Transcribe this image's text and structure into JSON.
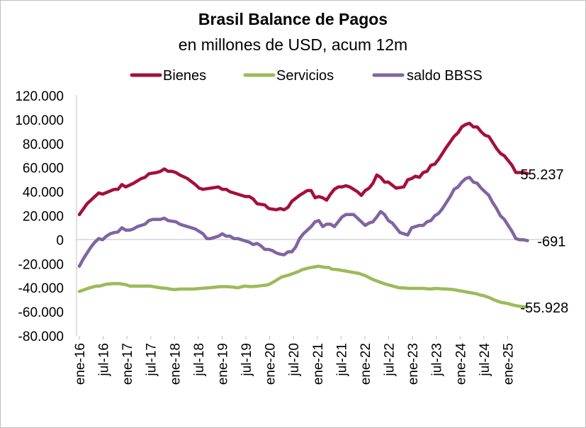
{
  "chart_data": {
    "type": "line",
    "title": "Brasil Balance de Pagos",
    "subtitle": "en millones de USD, acum 12m",
    "y_ticks": [
      "120.000",
      "100.000",
      "80.000",
      "60.000",
      "40.000",
      "20.000",
      "0",
      "-20.000",
      "-40.000",
      "-60.000",
      "-80.000"
    ],
    "ylim": [
      -80000,
      120000
    ],
    "x_tick_labels": [
      "ene-16",
      "jul-16",
      "ene-17",
      "jul-17",
      "ene-18",
      "jul-18",
      "ene-19",
      "jul-19",
      "ene-20",
      "jul-20",
      "ene-21",
      "jul-21",
      "ene-22",
      "jul-22",
      "ene-23",
      "jul-23",
      "ene-24",
      "jul-24",
      "ene-25"
    ],
    "x_start": "ene-16",
    "x_end": "jun-25",
    "grid": false,
    "legend_position": "top",
    "series": [
      {
        "name": "Bienes",
        "color": "#a50f3b",
        "end_label": "55.237",
        "keyframes": [
          [
            0,
            21000
          ],
          [
            2,
            30000
          ],
          [
            5,
            39000
          ],
          [
            6,
            38000
          ],
          [
            9,
            42000
          ],
          [
            10,
            42000
          ],
          [
            11,
            46000
          ],
          [
            12,
            44000
          ],
          [
            14,
            47000
          ],
          [
            16,
            51000
          ],
          [
            17,
            52000
          ],
          [
            18,
            55000
          ],
          [
            20,
            56000
          ],
          [
            21,
            57000
          ],
          [
            22,
            59000
          ],
          [
            23,
            57000
          ],
          [
            24,
            57000
          ],
          [
            25,
            56000
          ],
          [
            26,
            54000
          ],
          [
            28,
            51000
          ],
          [
            30,
            46000
          ],
          [
            31,
            43000
          ],
          [
            32,
            42000
          ],
          [
            34,
            43000
          ],
          [
            36,
            44000
          ],
          [
            37,
            42000
          ],
          [
            38,
            42000
          ],
          [
            39,
            40000
          ],
          [
            41,
            38000
          ],
          [
            43,
            36000
          ],
          [
            44,
            36000
          ],
          [
            45,
            34000
          ],
          [
            46,
            30000
          ],
          [
            48,
            29000
          ],
          [
            49,
            26000
          ],
          [
            51,
            25000
          ],
          [
            52,
            26000
          ],
          [
            53,
            25000
          ],
          [
            54,
            27000
          ],
          [
            55,
            32000
          ],
          [
            57,
            37000
          ],
          [
            59,
            41000
          ],
          [
            60,
            41000
          ],
          [
            61,
            35000
          ],
          [
            62,
            36000
          ],
          [
            63,
            35000
          ],
          [
            64,
            33000
          ],
          [
            65,
            38000
          ],
          [
            66,
            42000
          ],
          [
            67,
            44000
          ],
          [
            68,
            44000
          ],
          [
            69,
            45000
          ],
          [
            70,
            44000
          ],
          [
            71,
            42000
          ],
          [
            72,
            40000
          ],
          [
            73,
            37000
          ],
          [
            74,
            41000
          ],
          [
            75,
            43000
          ],
          [
            76,
            47000
          ],
          [
            77,
            54000
          ],
          [
            78,
            52000
          ],
          [
            79,
            48000
          ],
          [
            80,
            48000
          ],
          [
            82,
            43000
          ],
          [
            84,
            44000
          ],
          [
            85,
            50000
          ],
          [
            86,
            51000
          ],
          [
            87,
            53000
          ],
          [
            88,
            52000
          ],
          [
            89,
            56000
          ],
          [
            90,
            57000
          ],
          [
            91,
            62000
          ],
          [
            92,
            63000
          ],
          [
            93,
            67000
          ],
          [
            95,
            77000
          ],
          [
            97,
            86000
          ],
          [
            98,
            89000
          ],
          [
            99,
            94000
          ],
          [
            100,
            96000
          ],
          [
            101,
            97000
          ],
          [
            102,
            94000
          ],
          [
            103,
            94000
          ],
          [
            104,
            90000
          ],
          [
            105,
            87000
          ],
          [
            106,
            86000
          ],
          [
            107,
            81000
          ],
          [
            108,
            76000
          ],
          [
            109,
            72000
          ],
          [
            110,
            70000
          ],
          [
            111,
            66000
          ],
          [
            112,
            62000
          ],
          [
            113,
            56000
          ],
          [
            114,
            56000
          ],
          [
            115,
            56000
          ],
          [
            116,
            55237
          ]
        ]
      },
      {
        "name": "Servicios",
        "color": "#9bbb59",
        "end_label": "-55.928",
        "keyframes": [
          [
            0,
            -43000
          ],
          [
            3,
            -40000
          ],
          [
            5,
            -38500
          ],
          [
            6,
            -38500
          ],
          [
            8,
            -37000
          ],
          [
            10,
            -36500
          ],
          [
            12,
            -36500
          ],
          [
            14,
            -37500
          ],
          [
            15,
            -38500
          ],
          [
            18,
            -38500
          ],
          [
            20,
            -38500
          ],
          [
            21,
            -38500
          ],
          [
            23,
            -39500
          ],
          [
            24,
            -40000
          ],
          [
            26,
            -40500
          ],
          [
            27,
            -41000
          ],
          [
            28,
            -41500
          ],
          [
            30,
            -41000
          ],
          [
            32,
            -41000
          ],
          [
            34,
            -41000
          ],
          [
            36,
            -40500
          ],
          [
            38,
            -40000
          ],
          [
            40,
            -39500
          ],
          [
            42,
            -39000
          ],
          [
            44,
            -39000
          ],
          [
            46,
            -39500
          ],
          [
            47,
            -40000
          ],
          [
            49,
            -38500
          ],
          [
            51,
            -39000
          ],
          [
            53,
            -38500
          ],
          [
            56,
            -37500
          ],
          [
            58,
            -34500
          ],
          [
            60,
            -31000
          ],
          [
            62,
            -29500
          ],
          [
            63,
            -28500
          ],
          [
            65,
            -26500
          ],
          [
            66,
            -25000
          ],
          [
            68,
            -23500
          ],
          [
            70,
            -22500
          ],
          [
            71,
            -22000
          ],
          [
            73,
            -23000
          ],
          [
            74,
            -23000
          ],
          [
            75,
            -24500
          ],
          [
            77,
            -25000
          ],
          [
            79,
            -26000
          ],
          [
            81,
            -27000
          ],
          [
            83,
            -28000
          ],
          [
            85,
            -30000
          ],
          [
            87,
            -33000
          ],
          [
            89,
            -35000
          ],
          [
            91,
            -37000
          ],
          [
            93,
            -38500
          ],
          [
            95,
            -40000
          ],
          [
            96,
            -40000
          ],
          [
            98,
            -40500
          ],
          [
            100,
            -40500
          ],
          [
            102,
            -40500
          ],
          [
            104,
            -41000
          ],
          [
            106,
            -40500
          ],
          [
            108,
            -41000
          ],
          [
            109,
            -41000
          ],
          [
            111,
            -41500
          ],
          [
            113,
            -42500
          ],
          [
            115,
            -43500
          ],
          [
            117,
            -44500
          ],
          [
            118,
            -45000
          ],
          [
            119,
            -46000
          ],
          [
            120,
            -46500
          ],
          [
            121,
            -47500
          ],
          [
            122,
            -48500
          ],
          [
            123,
            -50000
          ],
          [
            124,
            -51000
          ],
          [
            125,
            -52000
          ],
          [
            127,
            -53000
          ],
          [
            129,
            -54500
          ],
          [
            131,
            -55500
          ],
          [
            133,
            -55928
          ]
        ]
      },
      {
        "name": "saldo BBSS",
        "color": "#8064a2",
        "end_label": "-691",
        "keyframes": [
          [
            0,
            -22000
          ],
          [
            1,
            -16000
          ],
          [
            2,
            -11000
          ],
          [
            3,
            -6000
          ],
          [
            4,
            -2000
          ],
          [
            5,
            1000
          ],
          [
            6,
            0
          ],
          [
            7,
            3000
          ],
          [
            8,
            5000
          ],
          [
            9,
            6000
          ],
          [
            10,
            6500
          ],
          [
            11,
            10000
          ],
          [
            12,
            8000
          ],
          [
            13,
            8000
          ],
          [
            14,
            9000
          ],
          [
            15,
            11000
          ],
          [
            16,
            12000
          ],
          [
            17,
            13000
          ],
          [
            18,
            16000
          ],
          [
            19,
            17000
          ],
          [
            21,
            17000
          ],
          [
            22,
            18000
          ],
          [
            23,
            16000
          ],
          [
            25,
            15000
          ],
          [
            26,
            13000
          ],
          [
            28,
            11000
          ],
          [
            30,
            9000
          ],
          [
            31,
            7000
          ],
          [
            32,
            5000
          ],
          [
            33,
            1000
          ],
          [
            34,
            1000
          ],
          [
            35,
            2000
          ],
          [
            36,
            3000
          ],
          [
            37,
            5000
          ],
          [
            38,
            3000
          ],
          [
            39,
            3000
          ],
          [
            40,
            1000
          ],
          [
            41,
            1000
          ],
          [
            42,
            0
          ],
          [
            43,
            -1000
          ],
          [
            44,
            -2000
          ],
          [
            45,
            -4000
          ],
          [
            46,
            -3000
          ],
          [
            47,
            -5000
          ],
          [
            48,
            -8000
          ],
          [
            49,
            -8000
          ],
          [
            50,
            -9000
          ],
          [
            51,
            -11000
          ],
          [
            52,
            -12000
          ],
          [
            53,
            -12500
          ],
          [
            54,
            -10000
          ],
          [
            55,
            -10000
          ],
          [
            56,
            -6000
          ],
          [
            57,
            1000
          ],
          [
            58,
            5000
          ],
          [
            59,
            8000
          ],
          [
            60,
            11000
          ],
          [
            61,
            15000
          ],
          [
            62,
            16000
          ],
          [
            63,
            11000
          ],
          [
            64,
            13000
          ],
          [
            65,
            13000
          ],
          [
            66,
            11000
          ],
          [
            67,
            15000
          ],
          [
            68,
            19000
          ],
          [
            69,
            21000
          ],
          [
            70,
            21000
          ],
          [
            71,
            21000
          ],
          [
            72,
            18000
          ],
          [
            73,
            15000
          ],
          [
            74,
            12000
          ],
          [
            75,
            14000
          ],
          [
            76,
            15000
          ],
          [
            77,
            19000
          ],
          [
            78,
            23500
          ],
          [
            79,
            21000
          ],
          [
            80,
            16000
          ],
          [
            81,
            14000
          ],
          [
            82,
            10000
          ],
          [
            83,
            6000
          ],
          [
            84,
            5000
          ],
          [
            85,
            4000
          ],
          [
            86,
            10000
          ],
          [
            87,
            11000
          ],
          [
            88,
            12000
          ],
          [
            89,
            12000
          ],
          [
            90,
            15000
          ],
          [
            91,
            16000
          ],
          [
            92,
            20000
          ],
          [
            93,
            22000
          ],
          [
            94,
            26000
          ],
          [
            95,
            31000
          ],
          [
            96,
            36000
          ],
          [
            97,
            42000
          ],
          [
            98,
            44000
          ],
          [
            99,
            48000
          ],
          [
            100,
            51000
          ],
          [
            101,
            52000
          ],
          [
            102,
            48000
          ],
          [
            103,
            47000
          ],
          [
            104,
            43000
          ],
          [
            105,
            40000
          ],
          [
            106,
            37000
          ],
          [
            107,
            31000
          ],
          [
            108,
            26000
          ],
          [
            109,
            20000
          ],
          [
            110,
            17000
          ],
          [
            111,
            12000
          ],
          [
            112,
            7000
          ],
          [
            113,
            1000
          ],
          [
            114,
            0
          ],
          [
            115,
            0
          ],
          [
            116,
            -691
          ]
        ]
      }
    ]
  }
}
